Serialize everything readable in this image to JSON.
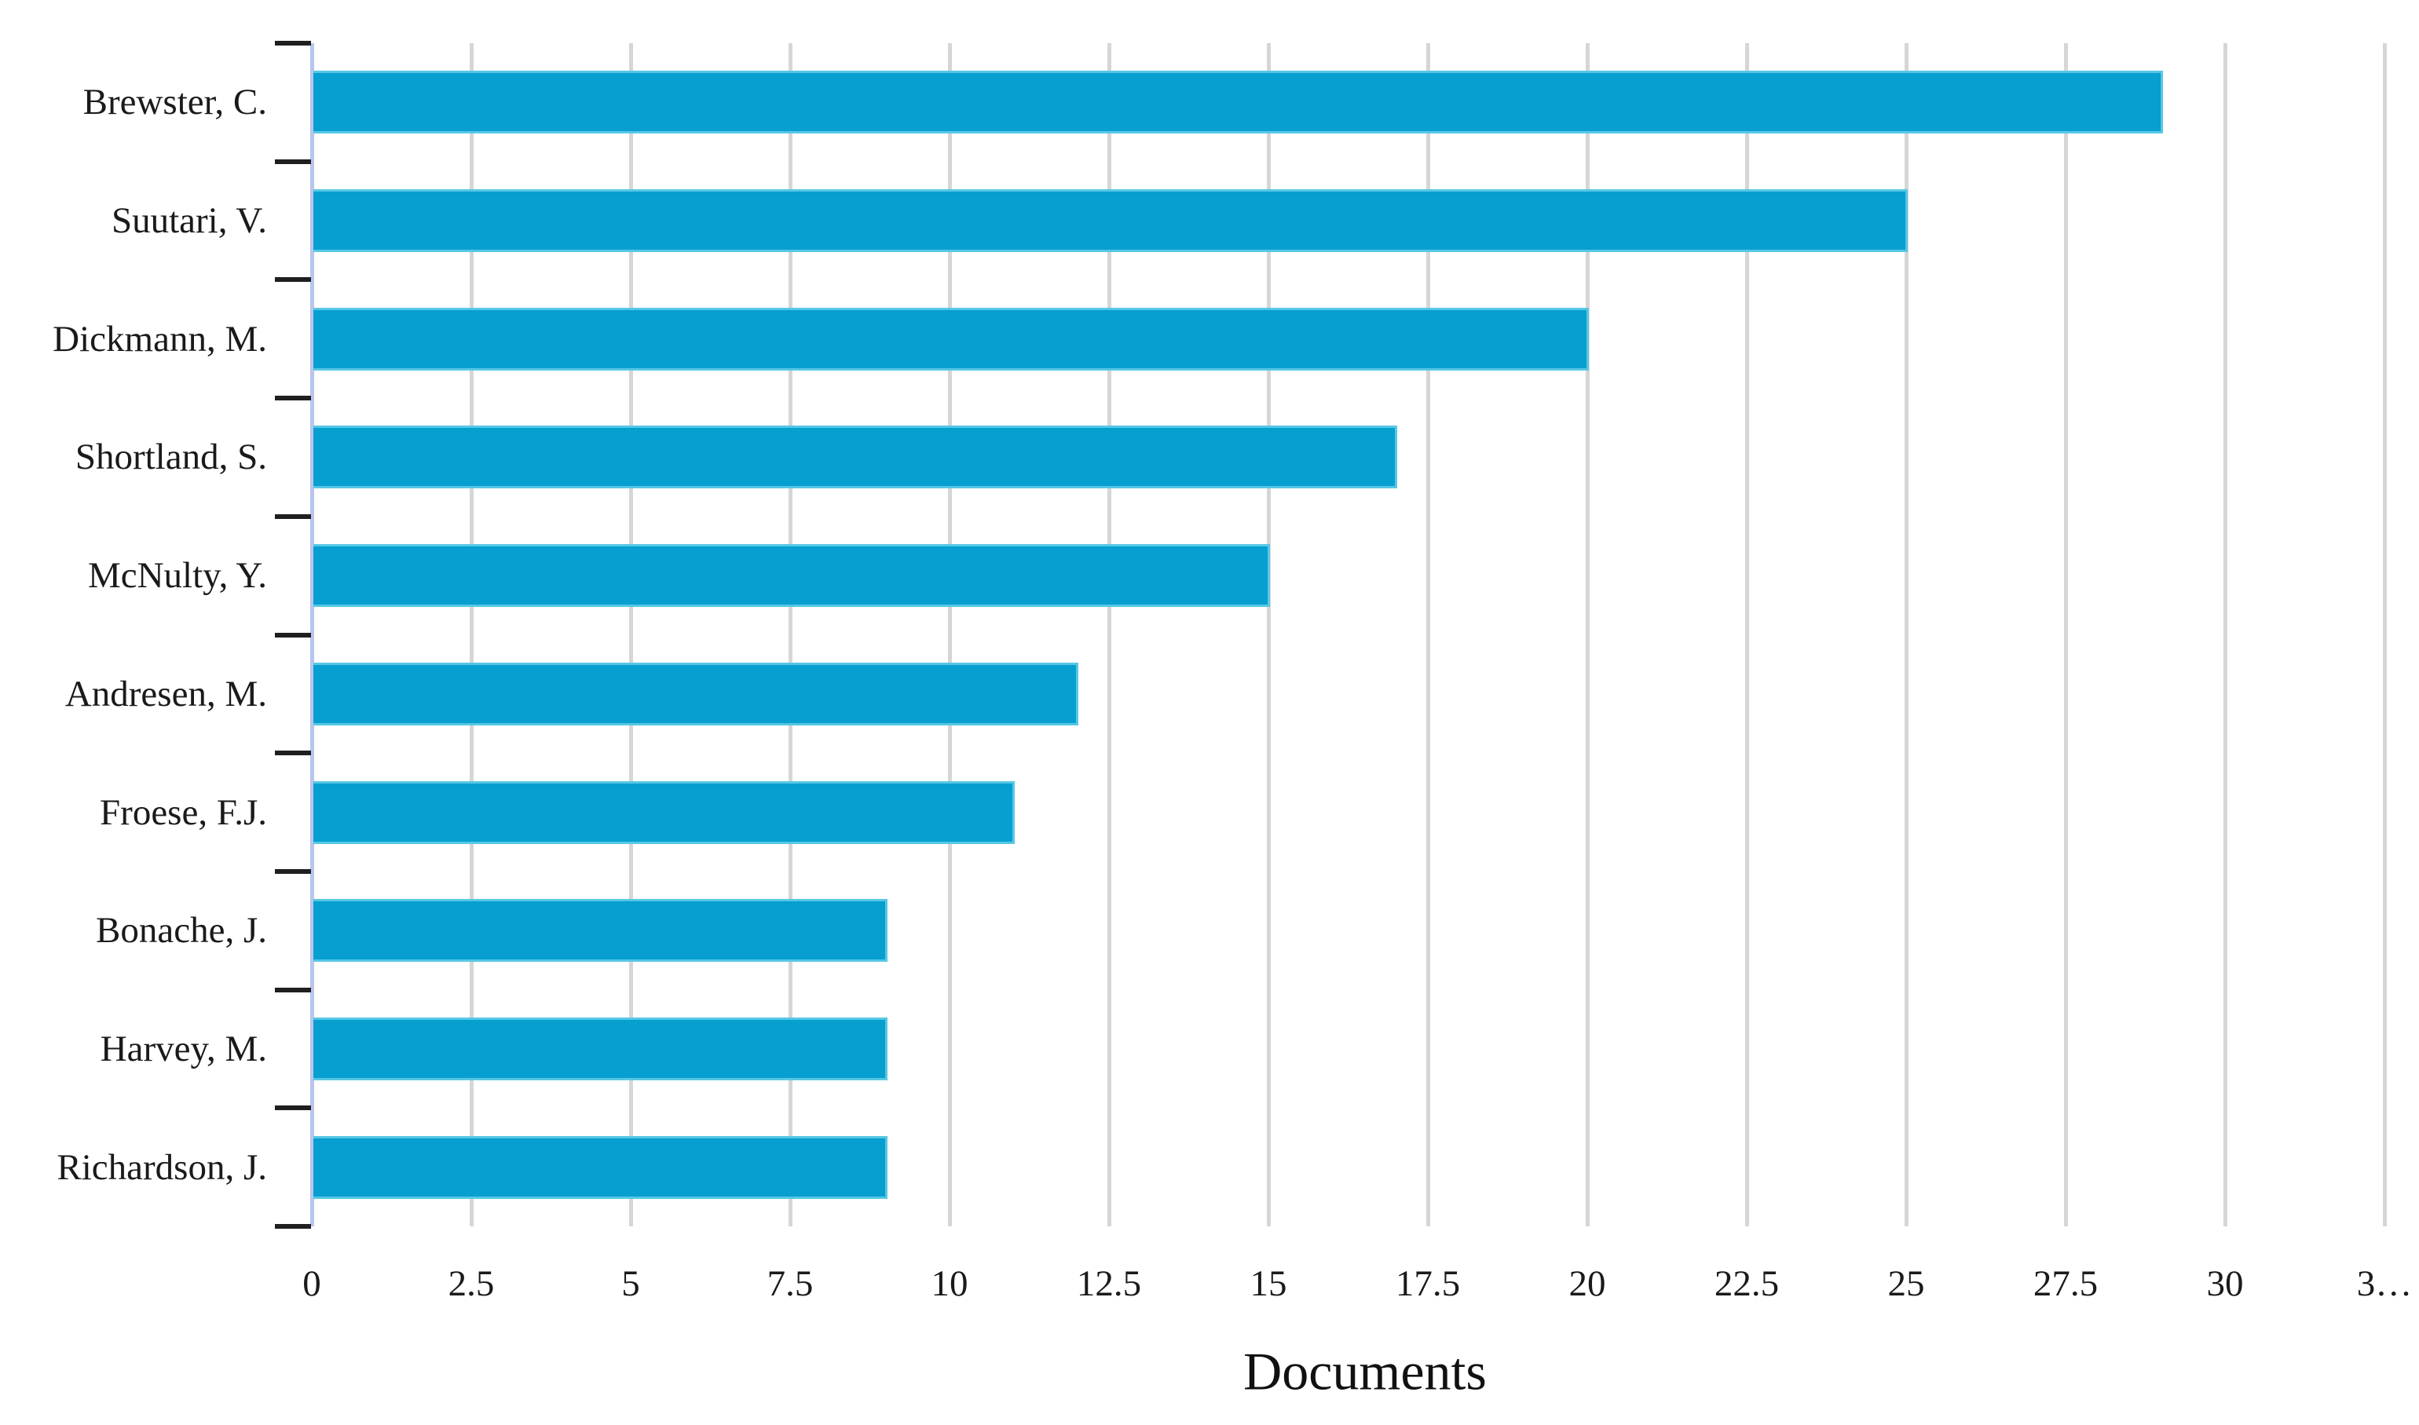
{
  "chart_data": {
    "type": "bar",
    "orientation": "horizontal",
    "title": "",
    "xlabel": "Documents",
    "ylabel": "",
    "categories": [
      "Brewster, C.",
      "Suutari, V.",
      "Dickmann, M.",
      "Shortland, S.",
      "McNulty, Y.",
      "Andresen, M.",
      "Froese, F.J.",
      "Bonache, J.",
      "Harvey, M.",
      "Richardson, J."
    ],
    "values": [
      29,
      25,
      20,
      17,
      15,
      12,
      11,
      9,
      9,
      9
    ],
    "x_ticks": [
      0,
      2.5,
      5,
      7.5,
      10,
      12.5,
      15,
      17.5,
      20,
      22.5,
      25,
      27.5,
      30,
      32.5
    ],
    "x_tick_labels": [
      "0",
      "2.5",
      "5",
      "7.5",
      "10",
      "12.5",
      "15",
      "17.5",
      "20",
      "22.5",
      "25",
      "27.5",
      "30",
      "3…"
    ],
    "xlim": [
      0,
      32.7
    ],
    "grid": true,
    "legend": "none",
    "colors": {
      "bar_fill": "#069fd0",
      "bar_edge": "#57c7e5",
      "gridline": "#d6d6d6",
      "y_axis_line": "#b9c6ec",
      "category_tick": "#1f1f1f",
      "text": "#1a1a1a"
    }
  }
}
